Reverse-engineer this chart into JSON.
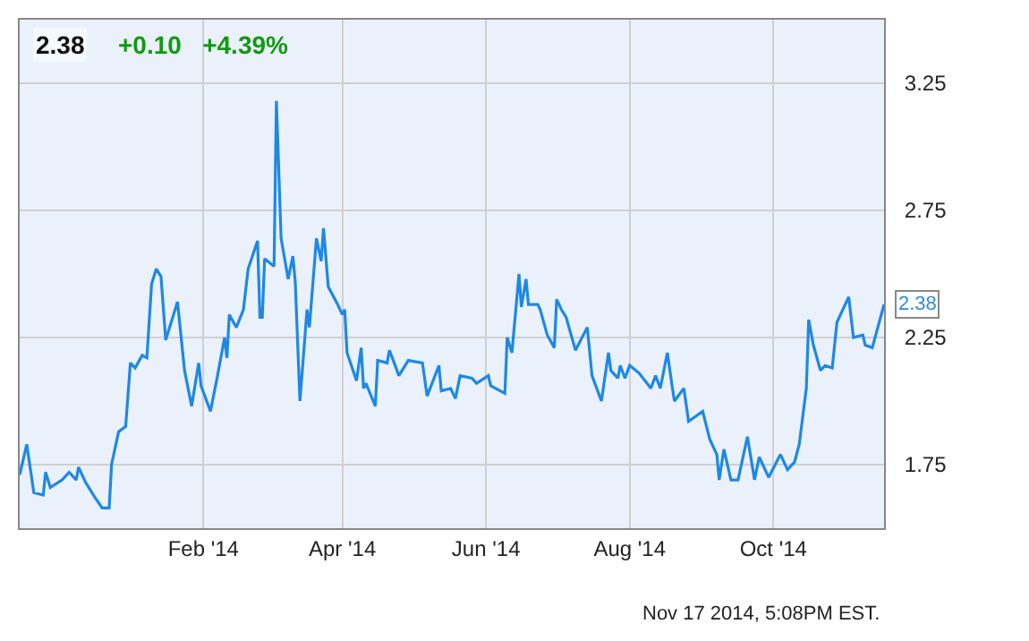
{
  "chart_data": {
    "type": "line",
    "title": "2.38",
    "subtitle": "+0.10  +4.39%",
    "annotations": [
      {
        "text": "2.38",
        "x": "2014-11-17",
        "y": 2.38
      },
      "Nov 17 2014, 5:08PM EST."
    ],
    "xlim": [
      "2013-11-15",
      "2014-11-17"
    ],
    "ylim": [
      1.5,
      3.5
    ],
    "xticks": [
      {
        "value": "2014-02-01",
        "label": "Feb '14"
      },
      {
        "value": "2014-04-01",
        "label": "Apr '14"
      },
      {
        "value": "2014-06-01",
        "label": "Jun '14"
      },
      {
        "value": "2014-08-01",
        "label": "Aug '14"
      },
      {
        "value": "2014-10-01",
        "label": "Oct '14"
      }
    ],
    "yticks": [
      1.75,
      2.25,
      2.75,
      3.25
    ],
    "grid": true,
    "marker": "none",
    "line_style": "solid",
    "x": [
      "2013-11-15",
      "2013-11-18",
      "2013-11-21",
      "2013-11-25",
      "2013-11-26",
      "2013-11-28",
      "2013-12-03",
      "2013-12-06",
      "2013-12-09",
      "2013-12-10",
      "2013-12-13",
      "2013-12-17",
      "2013-12-20",
      "2013-12-23",
      "2013-12-24",
      "2013-12-27",
      "2013-12-30",
      "2014-01-01",
      "2014-01-03",
      "2014-01-06",
      "2014-01-08",
      "2014-01-10",
      "2014-01-12",
      "2014-01-14",
      "2014-01-16",
      "2014-01-21",
      "2014-01-24",
      "2014-01-27",
      "2014-01-30",
      "2014-01-31",
      "2014-02-04",
      "2014-02-07",
      "2014-02-10",
      "2014-02-11",
      "2014-02-12",
      "2014-02-15",
      "2014-02-18",
      "2014-02-20",
      "2014-02-24",
      "2014-02-25",
      "2014-02-26",
      "2014-02-27",
      "2014-03-03",
      "2014-03-04",
      "2014-03-06",
      "2014-03-09",
      "2014-03-11",
      "2014-03-12",
      "2014-03-14",
      "2014-03-17",
      "2014-03-18",
      "2014-03-21",
      "2014-03-23",
      "2014-03-24",
      "2014-03-26",
      "2014-03-30",
      "2014-04-01",
      "2014-04-02",
      "2014-04-03",
      "2014-04-07",
      "2014-04-09",
      "2014-04-10",
      "2014-04-11",
      "2014-04-15",
      "2014-04-16",
      "2014-04-20",
      "2014-04-21",
      "2014-04-23",
      "2014-04-25",
      "2014-04-29",
      "2014-05-05",
      "2014-05-07",
      "2014-05-12",
      "2014-05-13",
      "2014-05-17",
      "2014-05-19",
      "2014-05-21",
      "2014-05-26",
      "2014-05-28",
      "2014-06-02",
      "2014-06-03",
      "2014-06-09",
      "2014-06-10",
      "2014-06-12",
      "2014-06-15",
      "2014-06-16",
      "2014-06-18",
      "2014-06-19",
      "2014-06-23",
      "2014-06-24",
      "2014-06-27",
      "2014-06-30",
      "2014-07-01",
      "2014-07-03",
      "2014-07-05",
      "2014-07-09",
      "2014-07-14",
      "2014-07-16",
      "2014-07-20",
      "2014-07-23",
      "2014-07-24",
      "2014-07-27",
      "2014-07-28",
      "2014-07-30",
      "2014-08-01",
      "2014-08-05",
      "2014-08-10",
      "2014-08-12",
      "2014-08-14",
      "2014-08-17",
      "2014-08-19",
      "2014-08-20",
      "2014-08-24",
      "2014-08-26",
      "2014-09-01",
      "2014-09-04",
      "2014-09-07",
      "2014-09-08",
      "2014-09-10",
      "2014-09-13",
      "2014-09-16",
      "2014-09-20",
      "2014-09-23",
      "2014-09-25",
      "2014-09-29",
      "2014-10-04",
      "2014-10-07",
      "2014-10-10",
      "2014-10-12",
      "2014-10-15",
      "2014-10-16",
      "2014-10-18",
      "2014-10-21",
      "2014-10-23",
      "2014-10-26",
      "2014-10-28",
      "2014-11-02",
      "2014-11-04",
      "2014-11-08",
      "2014-11-09",
      "2014-11-12",
      "2014-11-17"
    ],
    "series": [
      {
        "color": "#1e88e5",
        "values": [
          1.71,
          1.83,
          1.64,
          1.63,
          1.72,
          1.66,
          1.69,
          1.72,
          1.69,
          1.74,
          1.68,
          1.62,
          1.58,
          1.58,
          1.75,
          1.88,
          1.9,
          2.15,
          2.13,
          2.18,
          2.17,
          2.46,
          2.52,
          2.49,
          2.24,
          2.39,
          2.12,
          1.98,
          2.15,
          2.06,
          1.96,
          2.1,
          2.25,
          2.17,
          2.34,
          2.29,
          2.36,
          2.52,
          2.63,
          2.33,
          2.33,
          2.56,
          2.53,
          3.18,
          2.64,
          2.48,
          2.57,
          2.47,
          2.0,
          2.36,
          2.29,
          2.64,
          2.55,
          2.68,
          2.45,
          2.38,
          2.34,
          2.36,
          2.19,
          2.08,
          2.21,
          2.05,
          2.07,
          1.98,
          2.16,
          2.15,
          2.2,
          2.15,
          2.1,
          2.16,
          2.15,
          2.02,
          2.14,
          2.04,
          2.05,
          2.01,
          2.1,
          2.09,
          2.07,
          2.1,
          2.06,
          2.03,
          2.25,
          2.19,
          2.5,
          2.37,
          2.48,
          2.38,
          2.38,
          2.36,
          2.26,
          2.21,
          2.4,
          2.36,
          2.33,
          2.2,
          2.29,
          2.1,
          2.0,
          2.19,
          2.12,
          2.09,
          2.14,
          2.09,
          2.14,
          2.11,
          2.05,
          2.1,
          2.05,
          2.19,
          2.06,
          2.0,
          2.05,
          1.92,
          1.96,
          1.85,
          1.79,
          1.69,
          1.81,
          1.69,
          1.69,
          1.86,
          1.69,
          1.78,
          1.7,
          1.79,
          1.73,
          1.76,
          1.83,
          2.05,
          2.32,
          2.22,
          2.12,
          2.14,
          2.13,
          2.31,
          2.41,
          2.25,
          2.26,
          2.22,
          2.21,
          2.38
        ]
      }
    ]
  }
}
